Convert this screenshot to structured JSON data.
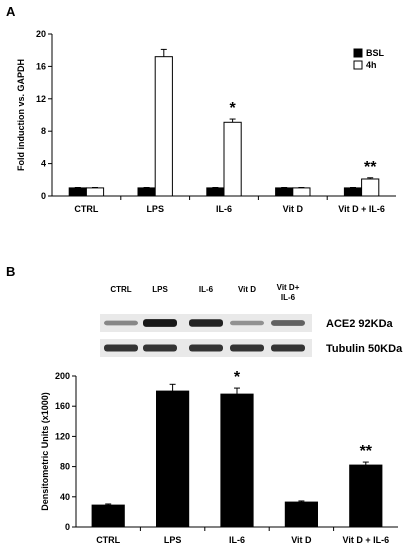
{
  "chart_data": [
    {
      "panel_letter": "A",
      "type": "bar",
      "categories": [
        "CTRL",
        "LPS",
        "IL-6",
        "Vit D",
        "Vit D + IL-6"
      ],
      "series": [
        {
          "name": "BSL",
          "values": [
            1.0,
            1.0,
            1.0,
            1.0,
            1.0
          ],
          "errors": [
            0.05,
            0.05,
            0.05,
            0.05,
            0.05
          ],
          "color": "#000000"
        },
        {
          "name": "4h",
          "values": [
            1.0,
            17.2,
            9.1,
            1.0,
            2.1
          ],
          "errors": [
            0.05,
            0.9,
            0.4,
            0.05,
            0.15
          ],
          "color": "#ffffff"
        }
      ],
      "ylabel": "Fold induction vs. GAPDH",
      "ylim": [
        0,
        20
      ],
      "yticks": [
        0,
        4,
        8,
        12,
        16,
        20
      ],
      "legend_position": "top-right",
      "annotations": [
        {
          "category": "IL-6",
          "text": "*"
        },
        {
          "category": "Vit D + IL-6",
          "text": "**"
        }
      ]
    },
    {
      "panel_letter": "B",
      "type": "bar",
      "categories": [
        "CTRL",
        "LPS",
        "IL-6",
        "Vit D",
        "Vit D + IL-6"
      ],
      "series": [
        {
          "values": [
            29,
            180,
            176,
            33,
            82
          ],
          "errors": [
            1.5,
            9,
            8,
            1.5,
            4
          ],
          "color": "#000000"
        }
      ],
      "ylabel": "Densitometric Units (x1000)",
      "ylim": [
        0,
        200
      ],
      "yticks": [
        0,
        40,
        80,
        120,
        160,
        200
      ],
      "annotations": [
        {
          "category": "IL-6",
          "text": "*"
        },
        {
          "category": "Vit D + IL-6",
          "text": "**"
        }
      ]
    }
  ],
  "blot": {
    "lane_labels": [
      "CTRL",
      "LPS",
      "IL-6",
      "Vit D",
      "Vit D+ IL-6"
    ],
    "bands": [
      {
        "label": "ACE2  92KDa",
        "intensities": [
          0.35,
          0.95,
          0.9,
          0.3,
          0.55
        ]
      },
      {
        "label": "Tubulin  50KDa",
        "intensities": [
          0.8,
          0.8,
          0.8,
          0.8,
          0.8
        ]
      }
    ]
  }
}
